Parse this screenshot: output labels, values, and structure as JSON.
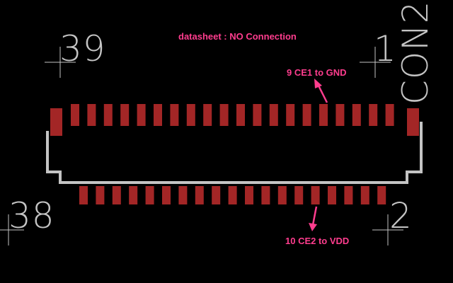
{
  "colors": {
    "background": "#000000",
    "pad": "#a32626",
    "silkscreen": "#c4c4c4",
    "annotation": "#ff3d8e"
  },
  "part": {
    "name": "CON2",
    "pin_labels": {
      "top_left": "39",
      "top_right": "1",
      "bottom_left": "38",
      "bottom_right": "2"
    }
  },
  "annotations": {
    "datasheet": "datasheet : NO Connection",
    "pin9": "9 CE1 to GND",
    "pin10": "10 CE2 to VDD"
  },
  "pads": {
    "top_row_count": 20,
    "bottom_row_count": 19,
    "side_pad_count": 2
  }
}
